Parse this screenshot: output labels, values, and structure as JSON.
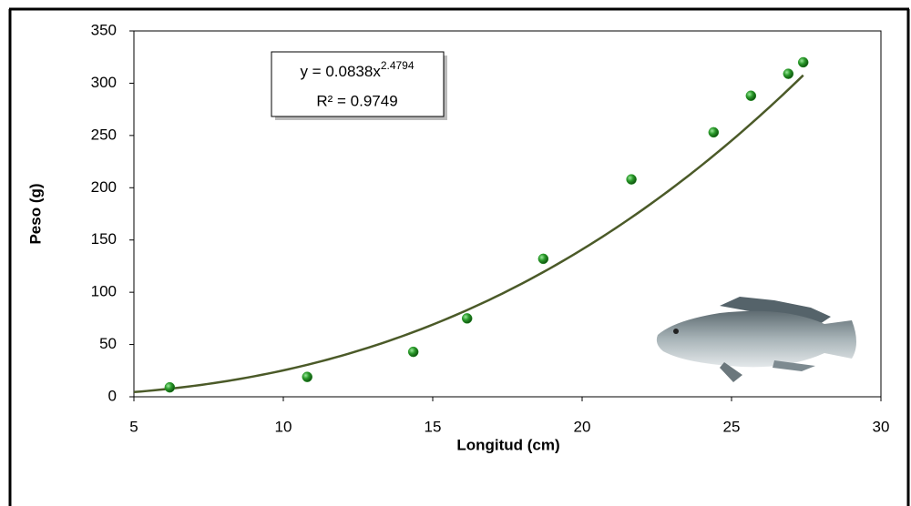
{
  "chart_data": {
    "type": "scatter",
    "x_label": "Longitud (cm)",
    "y_label": "Peso (g)",
    "x": [
      6.2,
      10.8,
      14.35,
      16.15,
      18.7,
      21.65,
      24.4,
      25.65,
      26.9,
      27.4
    ],
    "values": [
      9,
      19,
      43,
      75,
      132,
      208,
      253,
      288,
      309,
      320
    ],
    "color": "#2a9a2a",
    "xlim": [
      5,
      30
    ],
    "xticks": [
      5,
      10,
      15,
      20,
      25,
      30
    ],
    "ylim": [
      0,
      350
    ],
    "yticks": [
      0,
      50,
      100,
      150,
      200,
      250,
      300,
      350
    ],
    "grid": false,
    "trendline": {
      "type": "power",
      "color": "#4b5a28",
      "coefficient": {
        "value": 0.0838,
        "label": "y = 0.0838x"
      },
      "exponent": 2.4794,
      "r2": {
        "value": 0.9749,
        "label": "R² = 0.9749"
      }
    }
  }
}
